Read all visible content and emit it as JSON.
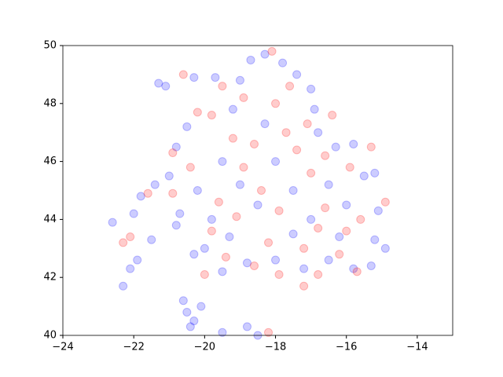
{
  "chart_data": {
    "type": "scatter",
    "xlim": [
      -24,
      -13
    ],
    "xticks": [
      {
        "value": -24,
        "label": "−24"
      },
      {
        "value": -22,
        "label": "−22"
      },
      {
        "value": -20,
        "label": "−20"
      },
      {
        "value": -18,
        "label": "−18"
      },
      {
        "value": -16,
        "label": "−16"
      },
      {
        "value": -14,
        "label": "−14"
      }
    ],
    "ylim": [
      40,
      50
    ],
    "yticks": [
      40,
      42,
      44,
      46,
      48,
      50
    ],
    "grid": false,
    "series": [
      {
        "color": "#0000ff",
        "x": [
          -22.6,
          -22.3,
          -22.1,
          -21.9,
          -21.5,
          -21.8,
          -22.0,
          -21.3,
          -21.1,
          -20.5,
          -20.6,
          -20.3,
          -20.1,
          -20.4,
          -19.5,
          -18.8,
          -18.5,
          -21.0,
          -20.8,
          -20.5,
          -20.2,
          -20.0,
          -19.8,
          -19.5,
          -19.2,
          -19.0,
          -18.7,
          -18.3,
          -17.8,
          -17.4,
          -17.0,
          -16.8,
          -16.3,
          -15.8,
          -15.5,
          -15.2,
          -15.1,
          -15.2,
          -14.9,
          -15.3,
          -15.8,
          -16.5,
          -17.2,
          -18.0,
          -18.8,
          -19.5,
          -20.3,
          -20.8,
          -19.0,
          -18.5,
          -18.0,
          -17.5,
          -17.0,
          -16.5,
          -16.0,
          -17.5,
          -18.3,
          -19.7,
          -20.3,
          -16.9,
          -21.4,
          -20.7,
          -19.3,
          -16.2
        ],
        "y": [
          43.9,
          41.7,
          42.3,
          42.6,
          43.3,
          44.8,
          44.2,
          48.7,
          48.6,
          40.8,
          41.2,
          40.5,
          41.0,
          40.3,
          40.1,
          40.3,
          40.0,
          45.5,
          46.5,
          47.2,
          45.0,
          43.0,
          44.0,
          46.0,
          47.8,
          48.8,
          49.5,
          49.7,
          49.4,
          49.0,
          48.5,
          47.0,
          46.5,
          46.6,
          45.5,
          45.6,
          44.3,
          43.3,
          43.0,
          42.4,
          42.3,
          42.6,
          42.3,
          42.6,
          42.5,
          42.2,
          42.8,
          43.8,
          45.2,
          44.5,
          46.0,
          45.0,
          44.0,
          45.2,
          44.5,
          43.5,
          47.3,
          48.9,
          48.9,
          47.8,
          45.2,
          44.2,
          43.4,
          43.4
        ]
      },
      {
        "color": "#ff0000",
        "x": [
          -22.3,
          -22.1,
          -21.6,
          -20.6,
          -19.5,
          -19.8,
          -20.2,
          -18.9,
          -18.1,
          -17.6,
          -17.1,
          -16.4,
          -16.6,
          -15.9,
          -15.3,
          -14.9,
          -15.6,
          -15.7,
          -16.2,
          -16.8,
          -17.2,
          -17.9,
          -18.6,
          -19.4,
          -20.0,
          -18.2,
          -18.9,
          -18.4,
          -17.9,
          -17.4,
          -17.0,
          -16.6,
          -18.2,
          -19.6,
          -20.4,
          -20.9,
          -19.2,
          -18.6,
          -17.2,
          -16.0,
          -20.9,
          -19.1,
          -18.0,
          -17.7,
          -16.8,
          -19.8
        ],
        "y": [
          43.2,
          43.4,
          44.9,
          49.0,
          48.6,
          47.6,
          47.7,
          48.2,
          49.8,
          48.6,
          47.3,
          47.6,
          46.2,
          45.8,
          46.5,
          44.6,
          44.0,
          42.2,
          42.8,
          42.1,
          41.7,
          42.1,
          42.4,
          42.7,
          42.1,
          40.1,
          45.8,
          45.0,
          44.3,
          46.4,
          45.6,
          44.4,
          43.2,
          44.6,
          45.8,
          46.3,
          46.8,
          46.6,
          43.0,
          43.6,
          44.9,
          44.1,
          48.0,
          47.0,
          43.7,
          43.6
        ]
      }
    ]
  }
}
